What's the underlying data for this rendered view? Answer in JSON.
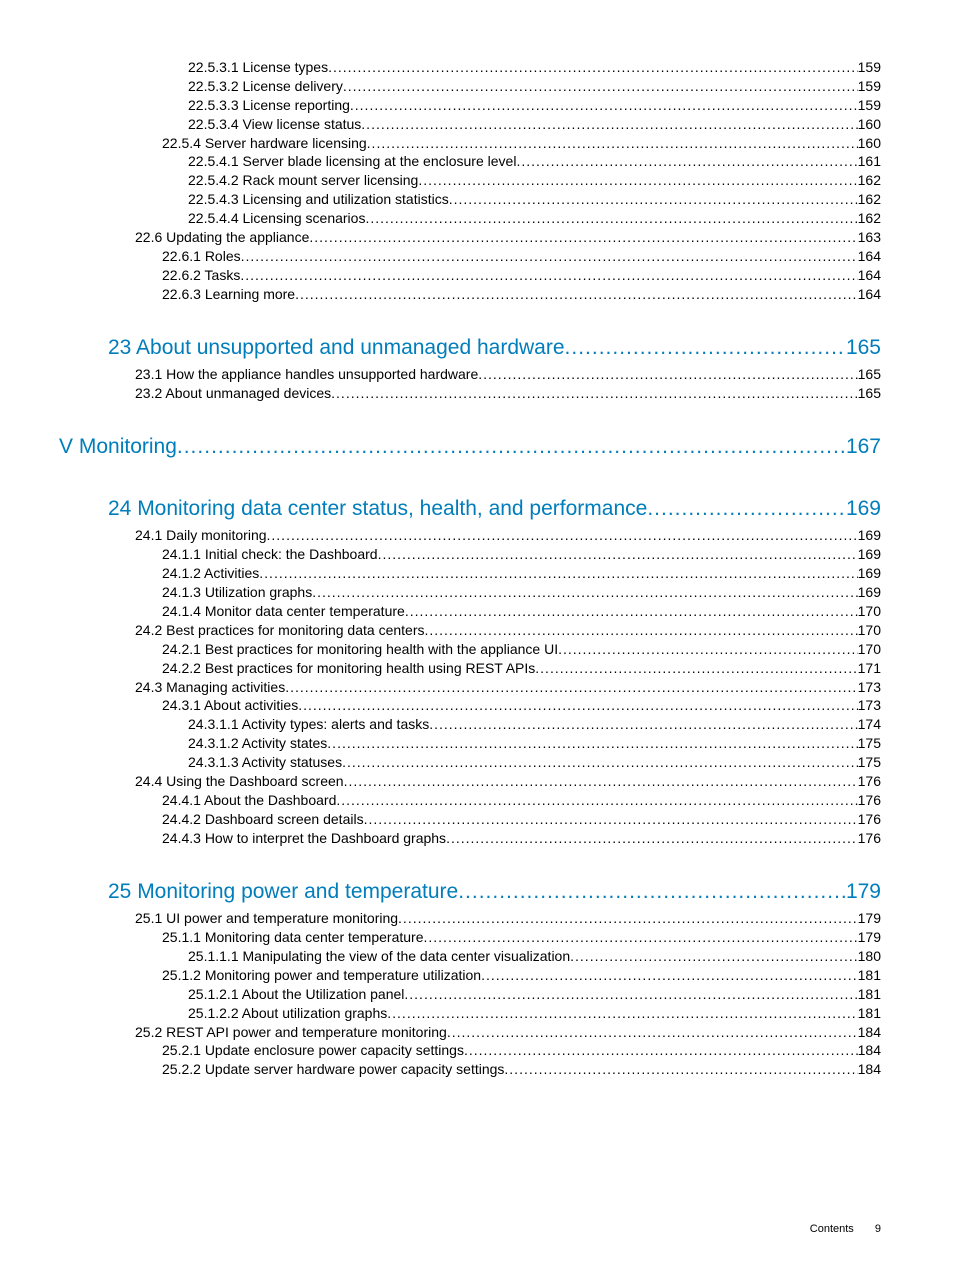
{
  "colors": {
    "link": "#007dba",
    "text": "#000000",
    "dots": "#000000"
  },
  "fontsizes": {
    "heading_pt": 21,
    "body_pt": 14,
    "footer_pt": 11
  },
  "dots_value": "........................................................................................................................................................................................................................................................",
  "footer": {
    "label": "Contents",
    "page": "9"
  },
  "toc": [
    {
      "level": 4,
      "title": "22.5.3.1 License types",
      "page": "159",
      "color": "text"
    },
    {
      "level": 4,
      "title": "22.5.3.2 License delivery",
      "page": "159",
      "color": "text"
    },
    {
      "level": 4,
      "title": "22.5.3.3 License reporting",
      "page": "159",
      "color": "text"
    },
    {
      "level": 4,
      "title": "22.5.3.4 View license status",
      "page": "160",
      "color": "text"
    },
    {
      "level": 3,
      "title": "22.5.4 Server hardware licensing",
      "page": "160",
      "color": "text"
    },
    {
      "level": 4,
      "title": "22.5.4.1 Server blade licensing at the enclosure level",
      "page": "161",
      "color": "text"
    },
    {
      "level": 4,
      "title": "22.5.4.2 Rack mount server licensing",
      "page": "162",
      "color": "text"
    },
    {
      "level": 4,
      "title": "22.5.4.3 Licensing and utilization statistics",
      "page": "162",
      "color": "text"
    },
    {
      "level": 4,
      "title": "22.5.4.4 Licensing scenarios",
      "page": "162",
      "color": "text"
    },
    {
      "level": 2,
      "title": "22.6 Updating the appliance",
      "page": "163",
      "color": "text"
    },
    {
      "level": 3,
      "title": "22.6.1 Roles",
      "page": "164",
      "color": "text"
    },
    {
      "level": 3,
      "title": "22.6.2 Tasks",
      "page": "164",
      "color": "text"
    },
    {
      "level": 3,
      "title": "22.6.3 Learning more",
      "page": "164",
      "color": "text"
    },
    {
      "level": "gap"
    },
    {
      "level": 1,
      "title": "23 About unsupported and unmanaged hardware",
      "page": "165",
      "color": "link"
    },
    {
      "level": 2,
      "title": "23.1 How the appliance handles unsupported hardware",
      "page": "165",
      "color": "text"
    },
    {
      "level": 2,
      "title": "23.2 About unmanaged devices",
      "page": "165",
      "color": "text"
    },
    {
      "level": "gap"
    },
    {
      "level": 0,
      "title": "V Monitoring",
      "page": "167",
      "color": "link"
    },
    {
      "level": "gap"
    },
    {
      "level": 1,
      "title": "24 Monitoring data center status, health, and performance",
      "page": "169",
      "color": "link"
    },
    {
      "level": 2,
      "title": "24.1 Daily monitoring",
      "page": "169",
      "color": "text"
    },
    {
      "level": 3,
      "title": "24.1.1 Initial check: the Dashboard",
      "page": "169",
      "color": "text"
    },
    {
      "level": 3,
      "title": "24.1.2 Activities",
      "page": "169",
      "color": "text"
    },
    {
      "level": 3,
      "title": "24.1.3 Utilization graphs",
      "page": "169",
      "color": "text"
    },
    {
      "level": 3,
      "title": "24.1.4 Monitor data center temperature",
      "page": "170",
      "color": "text"
    },
    {
      "level": 2,
      "title": "24.2 Best practices for monitoring data centers",
      "page": "170",
      "color": "text"
    },
    {
      "level": 3,
      "title": "24.2.1 Best practices for monitoring health with the appliance UI",
      "page": "170",
      "color": "text"
    },
    {
      "level": 3,
      "title": "24.2.2 Best practices for monitoring health using REST APIs",
      "page": "171",
      "color": "text"
    },
    {
      "level": 2,
      "title": "24.3 Managing activities",
      "page": "173",
      "color": "text"
    },
    {
      "level": 3,
      "title": "24.3.1 About activities",
      "page": "173",
      "color": "text"
    },
    {
      "level": 4,
      "title": "24.3.1.1 Activity types: alerts and tasks",
      "page": "174",
      "color": "text"
    },
    {
      "level": 4,
      "title": "24.3.1.2 Activity states",
      "page": "175",
      "color": "text"
    },
    {
      "level": 4,
      "title": "24.3.1.3 Activity statuses",
      "page": "175",
      "color": "text"
    },
    {
      "level": 2,
      "title": "24.4 Using the Dashboard screen",
      "page": "176",
      "color": "text"
    },
    {
      "level": 3,
      "title": "24.4.1 About the Dashboard",
      "page": "176",
      "color": "text"
    },
    {
      "level": 3,
      "title": "24.4.2 Dashboard screen details",
      "page": "176",
      "color": "text"
    },
    {
      "level": 3,
      "title": "24.4.3 How to interpret the Dashboard graphs",
      "page": "176",
      "color": "text"
    },
    {
      "level": "gap"
    },
    {
      "level": 1,
      "title": "25 Monitoring power and temperature",
      "page": "179",
      "color": "link"
    },
    {
      "level": 2,
      "title": "25.1 UI power and temperature monitoring",
      "page": "179",
      "color": "text"
    },
    {
      "level": 3,
      "title": "25.1.1 Monitoring data center temperature",
      "page": "179",
      "color": "text"
    },
    {
      "level": 4,
      "title": "25.1.1.1 Manipulating the view of the data center visualization",
      "page": "180",
      "color": "text"
    },
    {
      "level": 3,
      "title": "25.1.2 Monitoring power and temperature utilization",
      "page": "181",
      "color": "text"
    },
    {
      "level": 4,
      "title": "25.1.2.1 About the Utilization panel",
      "page": "181",
      "color": "text"
    },
    {
      "level": 4,
      "title": "25.1.2.2 About utilization graphs",
      "page": "181",
      "color": "text"
    },
    {
      "level": 2,
      "title": "25.2 REST API power and temperature monitoring",
      "page": "184",
      "color": "text"
    },
    {
      "level": 3,
      "title": "25.2.1 Update enclosure power capacity settings",
      "page": "184",
      "color": "text"
    },
    {
      "level": 3,
      "title": "25.2.2 Update server hardware power capacity settings",
      "page": "184",
      "color": "text"
    }
  ]
}
